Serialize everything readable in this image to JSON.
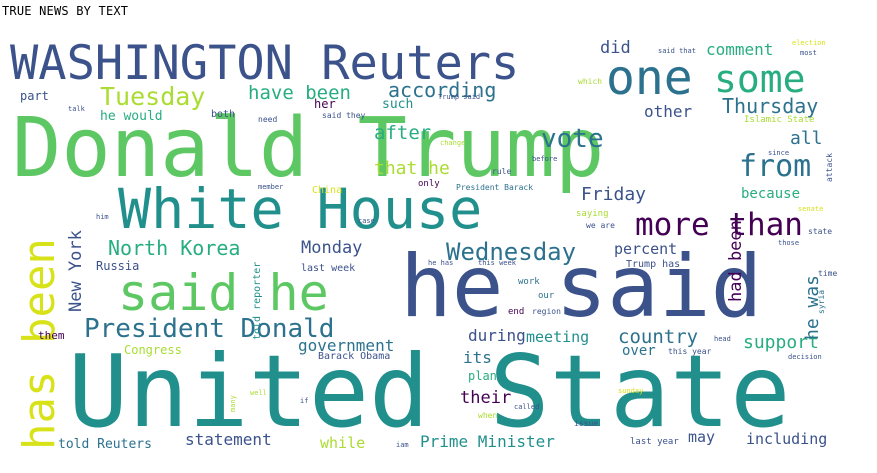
{
  "title": "TRUE NEWS BY TEXT",
  "words": {
    "donald_trump": "Donald Trump",
    "united_state": "United State",
    "he_said": "he said",
    "white_house": "White House",
    "washington_reuters": "WASHINGTON Reuters",
    "said_he": "said he",
    "one": "one",
    "some": "some",
    "has_been": "has been",
    "president_donald": "President Donald",
    "more_than": "more than",
    "from": "from",
    "vote": "vote",
    "tuesday": "Tuesday",
    "have_been": "have been",
    "according": "according",
    "thursday": "Thursday",
    "north_korea": "North Korea",
    "wednesday": "Wednesday",
    "monday": "Monday",
    "friday": "Friday",
    "country": "country",
    "support": "support",
    "new_york": "New York",
    "had_been": "had been",
    "he_was": "he was",
    "government": "government",
    "statement": "statement",
    "prime_minister": "Prime Minister",
    "told_reuters": "told Reuters",
    "including": "including",
    "comment": "comment",
    "did": "did",
    "after": "after",
    "that_he": "that he",
    "other": "other",
    "all": "all",
    "because": "because",
    "percent": "percent",
    "during": "during",
    "its": "its",
    "meeting": "meeting",
    "their": "their",
    "while": "while",
    "may": "may",
    "over": "over",
    "plan": "plan",
    "such": "such",
    "her": "her",
    "part": "part",
    "he_would": "he would",
    "both": "both",
    "russia": "Russia",
    "congress": "Congress",
    "them": "them",
    "last_week": "last week",
    "barack_obama": "Barack Obama",
    "told_reporter": "told reporter",
    "china": "China",
    "only": "only",
    "president_barack": "President Barack",
    "trump_has": "Trump has",
    "saying": "saying",
    "we_are": "we are",
    "last_year": "last year",
    "this_year": "this year",
    "issue": "issue",
    "called": "called",
    "when": "when",
    "end": "end",
    "region": "region",
    "our": "our",
    "work": "work",
    "this_week": "this week",
    "he_has": "he has",
    "election": "election",
    "most": "most",
    "said_that": "said that",
    "which": "which",
    "trump_said": "Trump said",
    "said_they": "said they",
    "need": "need",
    "islamic_state": "Islamic State",
    "change": "change",
    "rule": "rule",
    "before": "before",
    "since": "since",
    "attack": "attack",
    "member": "member",
    "state": "state",
    "case": "case",
    "senate": "senate",
    "those": "those",
    "time": "time",
    "syria": "syria",
    "decision": "decision",
    "sunday": "sunday",
    "head": "head",
    "if": "if",
    "well": "well",
    "many": "many",
    "him": "him",
    "talk": "talk",
    "iam": "iam"
  },
  "palette": {
    "dark_purple": "#440154",
    "indigo": "#3b528b",
    "blue": "#2c728e",
    "teal": "#21908d",
    "green": "#27ad81",
    "light_green": "#5dc863",
    "lime": "#aadc32",
    "yellow": "#d8e219",
    "background": "#ffffff"
  }
}
